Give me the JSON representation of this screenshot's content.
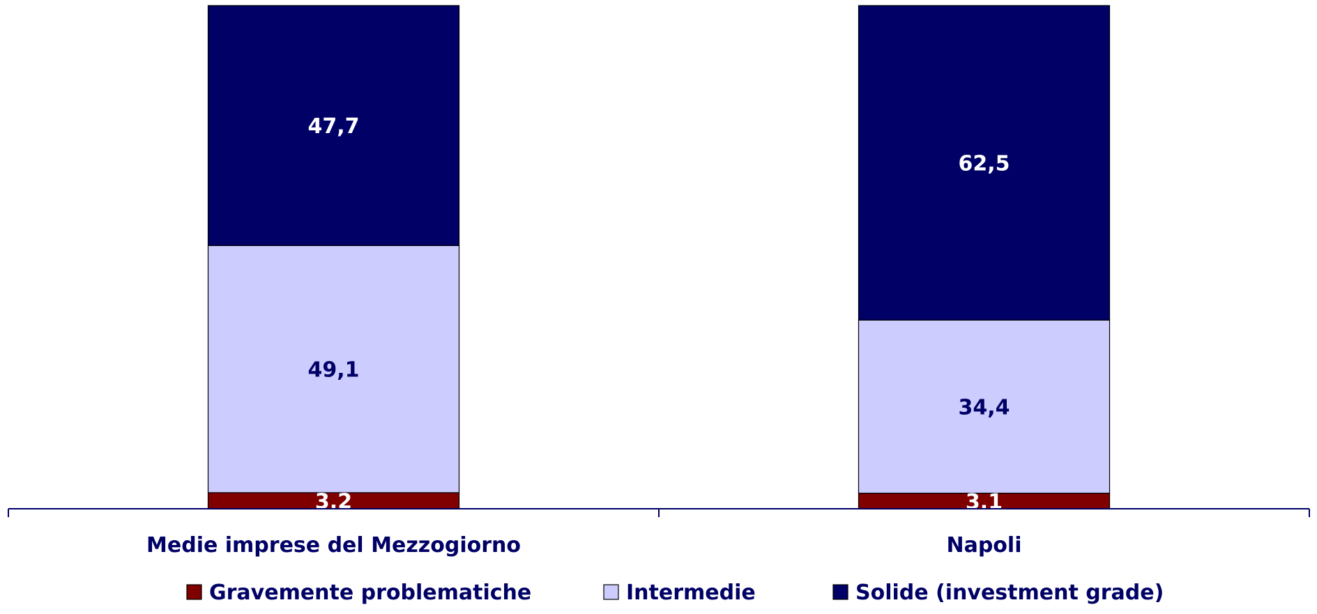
{
  "chart_data": {
    "type": "bar",
    "stacked": true,
    "title": "",
    "xlabel": "",
    "ylabel": "",
    "ylim": [
      0,
      100
    ],
    "grid": false,
    "legend_position": "bottom",
    "categories": [
      "Medie imprese del Mezzogiorno",
      "Napoli"
    ],
    "series": [
      {
        "name": "Gravemente problematiche",
        "values": [
          "3,2",
          "3,1"
        ],
        "color": "#800000",
        "label_color": "#ffffff"
      },
      {
        "name": "Intermedie",
        "values": [
          "49,1",
          "34,4"
        ],
        "color": "#ccccff",
        "label_color": "#000066"
      },
      {
        "name": "Solide (investment grade)",
        "values": [
          "47,7",
          "62,5"
        ],
        "color": "#000066",
        "label_color": "#ffffff"
      }
    ]
  }
}
